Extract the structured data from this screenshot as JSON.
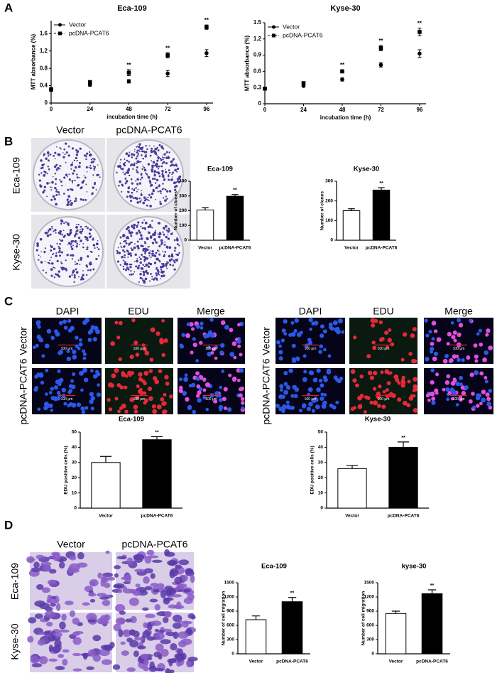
{
  "labels": {
    "panel_a": "A",
    "panel_b": "B",
    "panel_c": "C",
    "panel_d": "D",
    "b_columns": [
      "Vector",
      "pcDNA-PCAT6"
    ],
    "b_rows": [
      "Eca-109",
      "Kyse-30"
    ],
    "c_columns": [
      "DAPI",
      "EDU",
      "Merge"
    ],
    "c_rows": [
      "Vector",
      "pcDNA-PCAT6"
    ],
    "c_scale": "100 μm",
    "d_columns": [
      "Vector",
      "pcDNA-PCAT6"
    ],
    "d_rows": [
      "Eca-109",
      "Kyse-30"
    ]
  },
  "chart_data": [
    {
      "type": "line",
      "title": "Eca-109",
      "xlabel": "incubation time  (h)",
      "ylabel": "MTT absorbance (%)",
      "x": [
        0,
        24,
        48,
        72,
        96
      ],
      "xlim": [
        0,
        100
      ],
      "xticks": [
        0,
        24,
        48,
        72,
        96
      ],
      "ylim": [
        0,
        1.9
      ],
      "yticks": [
        0,
        0.4,
        0.8,
        1.2,
        1.6
      ],
      "legend": "upper left",
      "series": [
        {
          "name": "Vector",
          "color": "#000000",
          "marker": "circle",
          "dashed": false,
          "values": [
            0.3,
            0.42,
            0.5,
            0.68,
            1.15
          ],
          "errors": [
            0.03,
            0.03,
            0.04,
            0.07,
            0.08
          ]
        },
        {
          "name": "pcDNA-PCAT6",
          "color": "#000000",
          "marker": "square",
          "dashed": true,
          "values": [
            0.32,
            0.48,
            0.7,
            1.1,
            1.75
          ],
          "errors": [
            0.03,
            0.04,
            0.07,
            0.06,
            0.05
          ]
        }
      ],
      "annotations": [
        {
          "text": "**",
          "x": 48
        },
        {
          "text": "**",
          "x": 72
        },
        {
          "text": "**",
          "x": 96
        }
      ]
    },
    {
      "type": "line",
      "title": "Kyse-30",
      "xlabel": "incubation time  (h)",
      "ylabel": "MTT absorbance (%)",
      "x": [
        0,
        24,
        48,
        72,
        96
      ],
      "xlim": [
        0,
        100
      ],
      "xticks": [
        0,
        24,
        48,
        72,
        96
      ],
      "ylim": [
        0,
        1.5
      ],
      "yticks": [
        0,
        0.3,
        0.6,
        0.9,
        1.2,
        1.5
      ],
      "legend": "upper left",
      "series": [
        {
          "name": "Vector",
          "color": "#000000",
          "marker": "circle",
          "dashed": false,
          "values": [
            0.28,
            0.33,
            0.45,
            0.72,
            0.93
          ],
          "errors": [
            0.02,
            0.02,
            0.03,
            0.04,
            0.07
          ]
        },
        {
          "name": "pcDNA-PCAT6",
          "color": "#000000",
          "marker": "square",
          "dashed": true,
          "values": [
            0.28,
            0.38,
            0.6,
            1.03,
            1.33
          ],
          "errors": [
            0.02,
            0.03,
            0.03,
            0.05,
            0.07
          ]
        }
      ],
      "annotations": [
        {
          "text": "**",
          "x": 48
        },
        {
          "text": "**",
          "x": 72
        },
        {
          "text": "**",
          "x": 96
        }
      ]
    },
    {
      "type": "bar",
      "title": "Eca-109",
      "ylabel": "Number of clones",
      "categories": [
        "Vector",
        "pcDNA-PCAT6"
      ],
      "values": [
        205,
        298
      ],
      "errors": [
        15,
        12
      ],
      "colors": [
        "#ffffff",
        "#000000"
      ],
      "ylim": [
        0,
        400
      ],
      "yticks": [
        0,
        100,
        200,
        300,
        400
      ],
      "annotations": [
        {
          "text": "**",
          "category": "pcDNA-PCAT6"
        }
      ]
    },
    {
      "type": "bar",
      "title": "Kyse-30",
      "ylabel": "Number of clones",
      "categories": [
        "Vector",
        "pcDNA-PCAT6"
      ],
      "values": [
        150,
        255
      ],
      "errors": [
        10,
        12
      ],
      "colors": [
        "#ffffff",
        "#000000"
      ],
      "ylim": [
        0,
        300
      ],
      "yticks": [
        0,
        100,
        200,
        300
      ],
      "annotations": [
        {
          "text": "**",
          "category": "pcDNA-PCAT6"
        }
      ]
    },
    {
      "type": "bar",
      "title": "Eca-109",
      "ylabel": "EDU positive cells (%)",
      "categories": [
        "Vector",
        "pcDNA-PCAT6"
      ],
      "values": [
        30,
        45
      ],
      "errors": [
        4,
        2
      ],
      "colors": [
        "#ffffff",
        "#000000"
      ],
      "ylim": [
        0,
        50
      ],
      "yticks": [
        0,
        10,
        20,
        30,
        40,
        50
      ],
      "annotations": [
        {
          "text": "**",
          "category": "pcDNA-PCAT6"
        }
      ]
    },
    {
      "type": "bar",
      "title": "Kyse-30",
      "ylabel": "EDU positive cells (%)",
      "categories": [
        "Vector",
        "pcDNA-PCAT6"
      ],
      "values": [
        26,
        40
      ],
      "errors": [
        2,
        3.5
      ],
      "colors": [
        "#ffffff",
        "#000000"
      ],
      "ylim": [
        0,
        50
      ],
      "yticks": [
        0,
        10,
        20,
        30,
        40,
        50
      ],
      "annotations": [
        {
          "text": "**",
          "category": "pcDNA-PCAT6"
        }
      ]
    },
    {
      "type": "bar",
      "title": "Eca-109",
      "ylabel": "Number of cell migration",
      "categories": [
        "Vector",
        "pcDNA-PCAT6"
      ],
      "values": [
        720,
        1100
      ],
      "errors": [
        80,
        90
      ],
      "colors": [
        "#ffffff",
        "#000000"
      ],
      "ylim": [
        0,
        1500
      ],
      "yticks": [
        0,
        300,
        600,
        900,
        1200,
        1500
      ],
      "annotations": [
        {
          "text": "**",
          "category": "pcDNA-PCAT6"
        }
      ]
    },
    {
      "type": "bar",
      "title": "kyse-30",
      "ylabel": "Number of cell migration",
      "categories": [
        "Vector",
        "pcDNA-PCAT6"
      ],
      "values": [
        850,
        1270
      ],
      "errors": [
        50,
        80
      ],
      "colors": [
        "#ffffff",
        "#000000"
      ],
      "ylim": [
        0,
        1500
      ],
      "yticks": [
        0,
        300,
        600,
        900,
        1200,
        1500
      ],
      "annotations": [
        {
          "text": "**",
          "category": "pcDNA-PCAT6"
        }
      ]
    }
  ]
}
